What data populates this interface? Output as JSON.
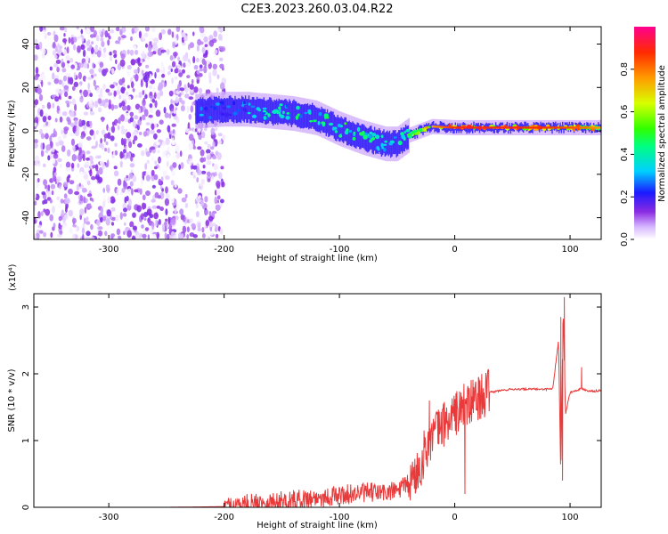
{
  "title": "C2E3.2023.260.03.04.R22",
  "chart_data": [
    {
      "type": "heatmap",
      "xlabel": "Height of straight line (km)",
      "ylabel": "Frequency (Hz)",
      "xlim": [
        -365,
        127
      ],
      "ylim": [
        -50,
        48
      ],
      "xticks": [
        -300,
        -200,
        -100,
        0,
        100
      ],
      "yticks": [
        -40,
        -20,
        0,
        20,
        40
      ],
      "colorbar": {
        "label": "Normalized spectral amplitude",
        "range": [
          0,
          1
        ],
        "ticks": [
          "0.0",
          "0.2",
          "0.4",
          "0.6",
          "0.8"
        ]
      },
      "ridge": {
        "x": [
          -225,
          -200,
          -180,
          -160,
          -140,
          -120,
          -100,
          -80,
          -60,
          -50,
          -40,
          -20,
          0,
          50,
          100,
          127
        ],
        "freq": [
          9,
          10,
          10,
          9,
          8,
          6,
          1,
          -3,
          -6,
          -6,
          -2,
          2,
          1.5,
          1.5,
          1.5,
          1.5
        ],
        "amplitude": [
          0.3,
          0.3,
          0.35,
          0.4,
          0.45,
          0.5,
          0.5,
          0.5,
          0.4,
          0.45,
          0.6,
          0.75,
          0.9,
          0.9,
          0.85,
          0.75
        ]
      },
      "noise_region": {
        "x": [
          -365,
          -200
        ],
        "freq": [
          -50,
          48
        ],
        "amplitude": [
          0.0,
          0.15
        ]
      }
    },
    {
      "type": "line",
      "xlabel": "Height of straight line (km)",
      "ylabel": "SNR (10 * v/v)",
      "y_multiplier": "(x10⁴)",
      "xlim": [
        -365,
        127
      ],
      "ylim": [
        0,
        3.2
      ],
      "xticks": [
        -300,
        -200,
        -100,
        0,
        100
      ],
      "yticks": [
        0,
        1,
        2,
        3
      ],
      "series": [
        {
          "color": "#e83a3a",
          "x": [
            -365,
            -300,
            -250,
            -200,
            -180,
            -160,
            -140,
            -120,
            -100,
            -80,
            -60,
            -50,
            -40,
            -30,
            -25,
            -20,
            -15,
            -10,
            -5,
            0,
            5,
            10,
            20,
            30,
            40,
            50,
            60,
            70,
            80,
            85,
            90,
            92,
            94,
            96,
            100,
            105,
            110,
            115,
            120,
            127
          ],
          "y": [
            0.0,
            0.0,
            0.0,
            0.01,
            0.05,
            0.08,
            0.11,
            0.14,
            0.18,
            0.22,
            0.22,
            0.25,
            0.35,
            0.6,
            0.9,
            1.05,
            1.15,
            1.25,
            1.3,
            1.4,
            1.45,
            1.5,
            1.65,
            1.72,
            1.75,
            1.77,
            1.77,
            1.77,
            1.77,
            1.78,
            2.5,
            0.45,
            3.0,
            1.4,
            1.72,
            1.75,
            1.78,
            1.75,
            1.74,
            1.75
          ],
          "spikes": [
            {
              "x": -22,
              "y": 1.6
            },
            {
              "x": 8,
              "y": 1.85
            },
            {
              "x": 8.8,
              "y": 0.2
            },
            {
              "x": 92,
              "y": 2.85
            },
            {
              "x": 93.5,
              "y": 0.4
            },
            {
              "x": 95,
              "y": 3.15
            },
            {
              "x": 110,
              "y": 2.1
            }
          ]
        }
      ]
    }
  ]
}
